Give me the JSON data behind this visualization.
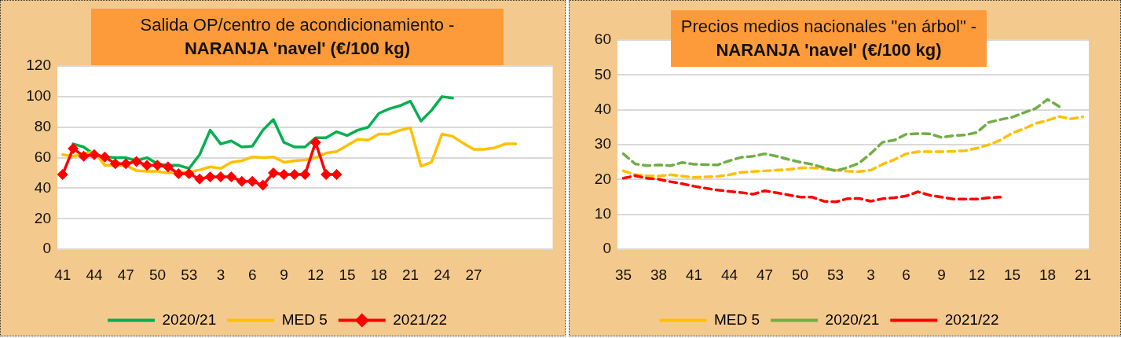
{
  "chart_data": [
    {
      "type": "line",
      "title": "Salida OP/centro de acondicionamiento -",
      "subtitle": "NARANJA 'navel' (€/100 kg)",
      "categories": [
        "41",
        null,
        null,
        "44",
        null,
        null,
        "47",
        null,
        null,
        "50",
        null,
        null,
        "53",
        null,
        null,
        "3",
        null,
        null,
        "6",
        null,
        null,
        "9",
        null,
        null,
        "12",
        null,
        null,
        "15",
        null,
        null,
        "18",
        null,
        null,
        "21",
        null,
        null,
        "24",
        null,
        null,
        "27",
        null,
        null,
        null,
        null,
        null,
        null,
        null
      ],
      "series": [
        {
          "name": "2020/21",
          "color": "#00b050",
          "marker": "none",
          "values": [
            null,
            69,
            67,
            62,
            60.5,
            60,
            60,
            58,
            60,
            56,
            55,
            55,
            53,
            62,
            78,
            69,
            71,
            67,
            67.5,
            78,
            85,
            70,
            67,
            67,
            73,
            73,
            77,
            74.5,
            78,
            80,
            89,
            92,
            94,
            97,
            84,
            91,
            100,
            99,
            null,
            null,
            null,
            null,
            null,
            null,
            null,
            null,
            null
          ]
        },
        {
          "name": "MED 5",
          "color": "#ffc000",
          "marker": "none",
          "values": [
            62,
            61,
            62.5,
            64,
            55,
            55,
            55,
            51.5,
            51,
            51,
            50,
            50.5,
            50.5,
            52,
            54,
            53,
            57,
            58,
            60.5,
            60,
            60.5,
            57,
            58,
            58.5,
            60,
            63,
            64,
            68,
            72,
            71.5,
            75.5,
            75.5,
            78,
            79.5,
            54.5,
            57,
            75.5,
            74,
            69.5,
            65.5,
            65.5,
            66.5,
            69,
            69,
            null,
            null,
            null
          ]
        },
        {
          "name": "2021/22",
          "color": "#ff0000",
          "marker": "diamond",
          "values": [
            49,
            66,
            61,
            62,
            60.5,
            56,
            56,
            57.5,
            55,
            55,
            54,
            49.5,
            49.5,
            46,
            47.5,
            47.5,
            47.5,
            44.5,
            44.5,
            42,
            50,
            49,
            49,
            49,
            70,
            49,
            49,
            null,
            null,
            null,
            null,
            null,
            null,
            null,
            null,
            null,
            null,
            null,
            null,
            null,
            null,
            null,
            null,
            null,
            null,
            null,
            null
          ]
        }
      ],
      "ylim": [
        0,
        120
      ],
      "yticks": [
        0,
        20,
        40,
        60,
        80,
        100,
        120
      ],
      "grid": "y",
      "legend": "bottom"
    },
    {
      "type": "line",
      "title": "Precios medios nacionales \"en árbol\" -",
      "subtitle": "NARANJA 'navel' (€/100 kg)",
      "categories": [
        "35",
        null,
        null,
        "38",
        null,
        null,
        "41",
        null,
        null,
        "44",
        null,
        null,
        "47",
        null,
        null,
        "50",
        null,
        null,
        "53",
        null,
        null,
        "3",
        null,
        null,
        "6",
        null,
        null,
        "9",
        null,
        null,
        "12",
        null,
        null,
        "15",
        null,
        null,
        "18",
        null,
        null,
        "21"
      ],
      "series": [
        {
          "name": "MED 5",
          "color": "#ffc000",
          "values": [
            22.5,
            21.4,
            21.1,
            21,
            21.4,
            21,
            20.6,
            20.8,
            20.9,
            21.4,
            22.1,
            22.3,
            22.5,
            22.7,
            22.9,
            23.3,
            23.4,
            23.1,
            22.7,
            22.4,
            22.3,
            22.7,
            24.4,
            25.7,
            27.4,
            28,
            28,
            28,
            28.1,
            28.3,
            29,
            30,
            31.3,
            33.3,
            34.6,
            36.1,
            37,
            38.1,
            37.4,
            38
          ]
        },
        {
          "name": "2020/21",
          "color": "#70ad47",
          "values": [
            27.4,
            24.5,
            24,
            24.2,
            24,
            24.9,
            24.4,
            24.3,
            24.2,
            25.4,
            26.4,
            26.7,
            27.4,
            26.7,
            25.8,
            25,
            24.4,
            23.4,
            22.5,
            23.4,
            24.7,
            27.5,
            30.7,
            31.3,
            33,
            33.2,
            33.1,
            32.1,
            32.6,
            32.8,
            33.5,
            36.4,
            37.2,
            37.9,
            39.2,
            40.4,
            43,
            40.9,
            null,
            null
          ]
        },
        {
          "name": "2021/22",
          "color": "#ff0000",
          "values": [
            20.4,
            21.1,
            20.4,
            20.1,
            19.4,
            18.8,
            18.1,
            17.5,
            17,
            16.6,
            16.3,
            15.8,
            16.8,
            16.2,
            15.6,
            15,
            15,
            13.8,
            13.6,
            14.5,
            14.6,
            13.8,
            14.5,
            14.8,
            15.3,
            16.5,
            15.5,
            15,
            14.4,
            14.4,
            14.4,
            14.8,
            15,
            null,
            null,
            null,
            null,
            null,
            null,
            null
          ]
        }
      ],
      "ylim": [
        0,
        60
      ],
      "yticks": [
        0,
        10,
        20,
        30,
        40,
        50,
        60
      ],
      "grid": "y",
      "legend": "bottom",
      "marker": "none",
      "line_style": "dashed"
    }
  ]
}
